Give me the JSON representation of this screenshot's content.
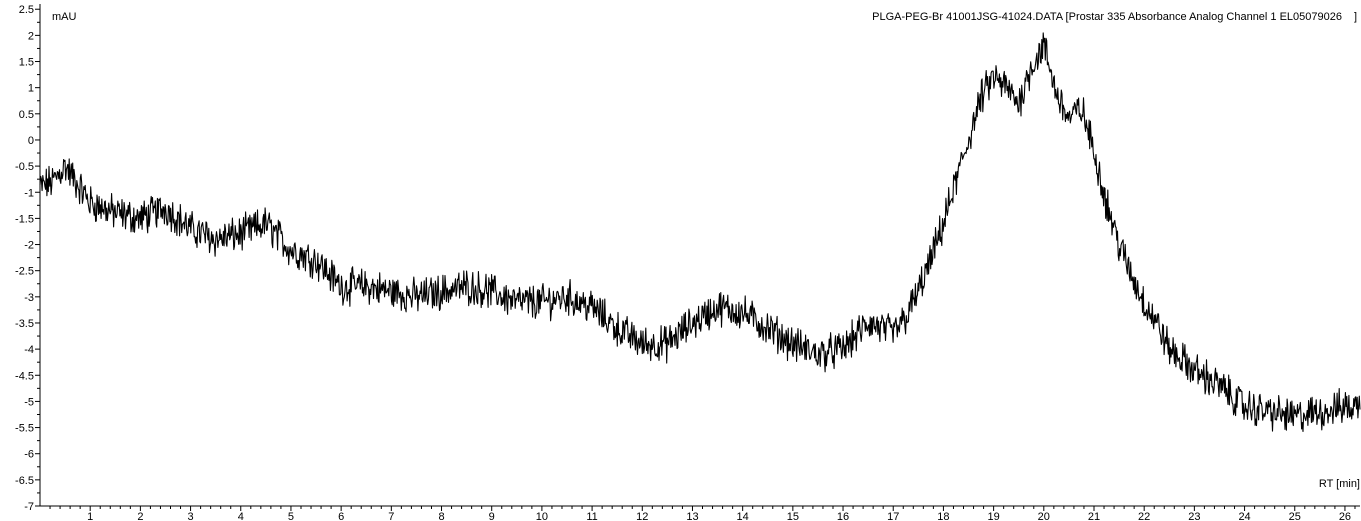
{
  "chart_data": {
    "type": "line",
    "title": "PLGA-PEG-Br 41001JSG-41024.DATA [Prostar 335 Absorbance Analog Channel 1 EL05079026",
    "title_closing_bracket": "]",
    "xlabel": "RT [min]",
    "ylabel": "mAU",
    "xlim": [
      0,
      26.3
    ],
    "ylim": [
      -7,
      2.6
    ],
    "x_ticks": [
      1,
      2,
      3,
      4,
      5,
      6,
      7,
      8,
      9,
      10,
      11,
      12,
      13,
      14,
      15,
      16,
      17,
      18,
      19,
      20,
      21,
      22,
      23,
      24,
      25,
      26
    ],
    "y_ticks": [
      2.5,
      2,
      1.5,
      1,
      0.5,
      0,
      -0.5,
      -1,
      -1.5,
      -2,
      -2.5,
      -3,
      -3.5,
      -4,
      -4.5,
      -5,
      -5.5,
      -6,
      -6.5,
      -7
    ],
    "y_tick_labels": [
      "2.5",
      "2",
      "1.5",
      "1",
      "0.5",
      "0",
      "-0.5",
      "-1",
      "-1.5",
      "-2",
      "-2.5",
      "-3",
      "-3.5",
      "-4",
      "-4.5",
      "-5",
      "-5.5",
      "-6",
      "-6.5",
      "-7"
    ],
    "grid": false,
    "series": [
      {
        "color": "#000000",
        "x": [
          0,
          0.25,
          0.5,
          1,
          1.5,
          2,
          2.5,
          3,
          3.5,
          4,
          4.5,
          5,
          5.5,
          6,
          6.5,
          7,
          7.5,
          8,
          8.5,
          9,
          9.5,
          10,
          10.5,
          11,
          11.5,
          12,
          12.5,
          13,
          13.5,
          14,
          14.5,
          15,
          15.5,
          16,
          16.5,
          17,
          17.25,
          17.5,
          17.75,
          18,
          18.25,
          18.5,
          18.75,
          19,
          19.25,
          19.5,
          19.75,
          20,
          20.25,
          20.5,
          20.75,
          21,
          21.25,
          21.5,
          21.75,
          22,
          22.25,
          22.5,
          22.75,
          23,
          23.5,
          24,
          24.5,
          25,
          25.5,
          26,
          26.3
        ],
        "y": [
          -0.9,
          -0.8,
          -0.5,
          -1.2,
          -1.4,
          -1.5,
          -1.3,
          -1.7,
          -1.9,
          -1.8,
          -1.6,
          -2.1,
          -2.3,
          -2.8,
          -2.8,
          -2.9,
          -3.0,
          -2.9,
          -2.8,
          -2.9,
          -3.1,
          -3.1,
          -3.0,
          -3.2,
          -3.6,
          -3.9,
          -3.9,
          -3.5,
          -3.2,
          -3.3,
          -3.6,
          -3.9,
          -4.1,
          -4.0,
          -3.5,
          -3.7,
          -3.4,
          -2.9,
          -2.3,
          -1.6,
          -0.8,
          0.0,
          0.8,
          1.2,
          1.0,
          0.7,
          1.4,
          1.8,
          0.9,
          0.4,
          0.6,
          -0.2,
          -1.2,
          -2.0,
          -2.6,
          -3.1,
          -3.5,
          -4.0,
          -4.2,
          -4.4,
          -4.7,
          -5.1,
          -5.2,
          -5.3,
          -5.2,
          -5.1,
          -5.1
        ]
      }
    ]
  }
}
